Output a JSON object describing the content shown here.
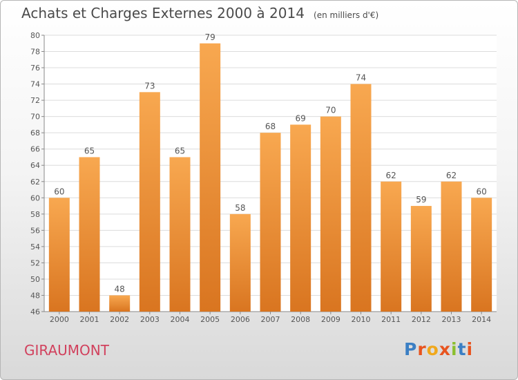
{
  "header": {
    "title": "Achats et Charges Externes 2000 à 2014",
    "subtitle": "(en milliers d'€)"
  },
  "footer": {
    "commune": "GIRAUMONT",
    "logo": "Proxiti",
    "logo_colors": [
      "#3b7fc4",
      "#e8541f",
      "#f0a81c",
      "#e8541f",
      "#8bbf2e",
      "#3b7fc4",
      "#e8541f"
    ]
  },
  "colors": {
    "bar_light": "#f8a850",
    "bar_dark": "#d97520",
    "commune": "#d1415d"
  },
  "chart_data": {
    "type": "bar",
    "title": "Achats et Charges Externes 2000 à 2014",
    "categories": [
      "2000",
      "2001",
      "2002",
      "2003",
      "2004",
      "2005",
      "2006",
      "2007",
      "2008",
      "2009",
      "2010",
      "2011",
      "2012",
      "2013",
      "2014"
    ],
    "values": [
      60,
      65,
      48,
      73,
      65,
      79,
      58,
      68,
      69,
      70,
      74,
      62,
      59,
      62,
      60
    ],
    "ylim": [
      46,
      80
    ],
    "yticks": [
      46,
      48,
      50,
      52,
      54,
      56,
      58,
      60,
      62,
      64,
      66,
      68,
      70,
      72,
      74,
      76,
      78,
      80
    ],
    "grid": true,
    "xlabel": "",
    "ylabel": ""
  }
}
